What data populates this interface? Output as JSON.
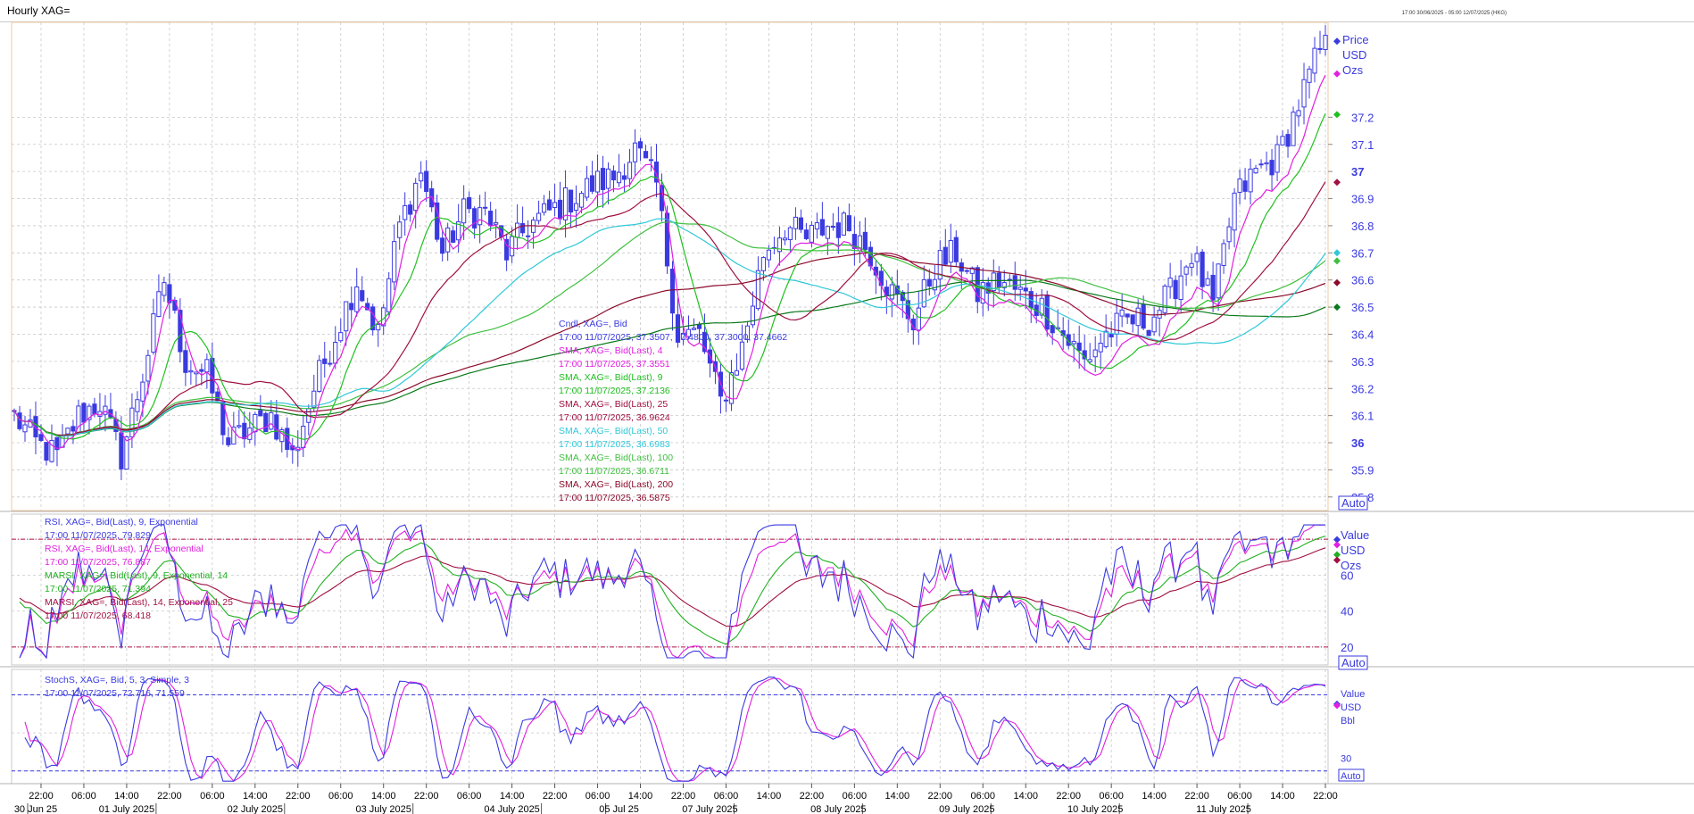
{
  "window": {
    "title": "Hourly XAG=",
    "range_text": "17:00 30/06/2025 - 05:00 12/07/2025 (HKG)"
  },
  "colors": {
    "candle": "#3a3ae0",
    "sma4": "#e020e0",
    "sma9": "#20c020",
    "sma25": "#a01040",
    "sma50": "#30c8d8",
    "sma100": "#40c040",
    "sma200": "#8b0a2a",
    "sma250": "#0a7a1a",
    "rsi9": "#3a3ae0",
    "rsi14": "#e020e0",
    "marsi9": "#20b020",
    "marsi14": "#a01040",
    "stoch_k": "#3a3ae0",
    "stoch_d": "#e020e0",
    "text_default": "#3a3ae0"
  },
  "chart_data": [
    {
      "type": "candlestick",
      "panel": "price",
      "unit_labels": [
        "Price",
        "USD",
        "Ozs"
      ],
      "auto_label": "Auto",
      "ylim": [
        35.75,
        37.55
      ],
      "y_ticks": [
        {
          "value": 37.2,
          "label": "37.2"
        },
        {
          "value": 37.1,
          "label": "37.1"
        },
        {
          "value": 37.0,
          "label": "37"
        },
        {
          "value": 36.9,
          "label": "36.9"
        },
        {
          "value": 36.8,
          "label": "36.8"
        },
        {
          "value": 36.7,
          "label": "36.7"
        },
        {
          "value": 36.6,
          "label": "36.6"
        },
        {
          "value": 36.5,
          "label": "36.5"
        },
        {
          "value": 36.4,
          "label": "36.4"
        },
        {
          "value": 36.3,
          "label": "36.3"
        },
        {
          "value": 36.2,
          "label": "36.2"
        },
        {
          "value": 36.1,
          "label": "36.1"
        },
        {
          "value": 36.0,
          "label": "36"
        },
        {
          "value": 35.9,
          "label": "35.9"
        },
        {
          "value": 35.8,
          "label": "35.8"
        }
      ],
      "legend": [
        {
          "name": "Cndl, XAG=, Bid",
          "value": "17:00 11/07/2025, 37.3507, 37.4800, 37.3000, 37.4662",
          "color": "candle"
        },
        {
          "name": "SMA, XAG=, Bid(Last),  4",
          "value": "17:00 11/07/2025, 37.3551",
          "color": "sma4"
        },
        {
          "name": "SMA, XAG=, Bid(Last),  9",
          "value": "17:00 11/07/2025, 37.2136",
          "color": "sma9"
        },
        {
          "name": "SMA, XAG=, Bid(Last),  25",
          "value": "17:00 11/07/2025, 36.9624",
          "color": "sma25"
        },
        {
          "name": "SMA, XAG=, Bid(Last),  50",
          "value": "17:00 11/07/2025, 36.6983",
          "color": "sma50"
        },
        {
          "name": "SMA, XAG=, Bid(Last),  100",
          "value": "17:00 11/07/2025, 36.6711",
          "color": "sma100"
        },
        {
          "name": "SMA, XAG=, Bid(Last),  200",
          "value": "17:00 11/07/2025, 36.5875",
          "color": "sma200"
        }
      ],
      "close_anchors": [
        [
          0,
          36.1
        ],
        [
          4,
          36.0
        ],
        [
          8,
          35.95
        ],
        [
          12,
          36.1
        ],
        [
          16,
          36.15
        ],
        [
          20,
          35.95
        ],
        [
          24,
          36.25
        ],
        [
          28,
          36.6
        ],
        [
          32,
          36.3
        ],
        [
          36,
          36.25
        ],
        [
          40,
          36.0
        ],
        [
          44,
          36.05
        ],
        [
          48,
          36.1
        ],
        [
          52,
          35.95
        ],
        [
          56,
          36.2
        ],
        [
          60,
          36.4
        ],
        [
          64,
          36.6
        ],
        [
          68,
          36.4
        ],
        [
          72,
          36.8
        ],
        [
          76,
          37.0
        ],
        [
          80,
          36.7
        ],
        [
          84,
          36.85
        ],
        [
          88,
          36.85
        ],
        [
          92,
          36.7
        ],
        [
          96,
          36.8
        ],
        [
          100,
          36.85
        ],
        [
          104,
          36.9
        ],
        [
          108,
          36.95
        ],
        [
          112,
          36.98
        ],
        [
          116,
          37.08
        ],
        [
          120,
          36.95
        ],
        [
          124,
          36.4
        ],
        [
          128,
          36.4
        ],
        [
          132,
          36.15
        ],
        [
          136,
          36.35
        ],
        [
          140,
          36.7
        ],
        [
          144,
          36.8
        ],
        [
          148,
          36.75
        ],
        [
          152,
          36.8
        ],
        [
          156,
          36.8
        ],
        [
          160,
          36.7
        ],
        [
          164,
          36.55
        ],
        [
          168,
          36.45
        ],
        [
          172,
          36.65
        ],
        [
          176,
          36.7
        ],
        [
          180,
          36.55
        ],
        [
          184,
          36.6
        ],
        [
          188,
          36.55
        ],
        [
          192,
          36.5
        ],
        [
          196,
          36.4
        ],
        [
          200,
          36.3
        ],
        [
          204,
          36.4
        ],
        [
          208,
          36.45
        ],
        [
          212,
          36.45
        ],
        [
          216,
          36.55
        ],
        [
          220,
          36.7
        ],
        [
          224,
          36.5
        ],
        [
          228,
          36.9
        ],
        [
          232,
          37.0
        ],
        [
          236,
          37.05
        ],
        [
          240,
          37.25
        ],
        [
          244,
          37.45
        ]
      ],
      "sma_last": {
        "sma4": 37.3551,
        "sma9": 37.2136,
        "sma25": 36.9624,
        "sma50": 36.6983,
        "sma100": 36.6711,
        "sma200": 36.5875,
        "sma250": 36.5
      }
    },
    {
      "type": "line",
      "panel": "rsi",
      "unit_labels": [
        "Value",
        "USD",
        "Ozs"
      ],
      "auto_label": "Auto",
      "ylim": [
        10,
        94
      ],
      "y_ticks": [
        {
          "value": 60,
          "label": "60"
        },
        {
          "value": 40,
          "label": "40"
        },
        {
          "value": 20,
          "label": "20"
        }
      ],
      "reference_lines": [
        80,
        20
      ],
      "legend": [
        {
          "name": "RSI, XAG=, Bid(Last),  9, Exponential",
          "value": "17:00 11/07/2025, 79.829",
          "color": "rsi9"
        },
        {
          "name": "RSI, XAG=, Bid(Last),  14, Exponential",
          "value": "17:00 11/07/2025, 76.887",
          "color": "rsi14"
        },
        {
          "name": "MARSI, XAG=, Bid(Last),  9, Exponential, 14",
          "value": "17:00 11/07/2025, 71.394",
          "color": "marsi9"
        },
        {
          "name": "MARSI, XAG=, Bid(Last),  14, Exponential, 25",
          "value": "17:00 11/07/2025, 68.418",
          "color": "marsi14"
        }
      ],
      "last": {
        "rsi9": 79.829,
        "rsi14": 76.887,
        "marsi9": 71.394,
        "marsi14": 68.418
      }
    },
    {
      "type": "line",
      "panel": "stochastic",
      "unit_labels": [
        "Value",
        "USD",
        "Bbl"
      ],
      "auto_label": "Auto",
      "ylim": [
        10,
        100
      ],
      "y_ticks": [
        {
          "value": 30,
          "label": "30"
        }
      ],
      "reference_lines": [
        80,
        20
      ],
      "legend": [
        {
          "name": "StochS, XAG=, Bid,  5, 3, Simple, 3",
          "value": "17:00 11/07/2025, 72.716, 71.559",
          "color": "stoch_k"
        }
      ],
      "last": {
        "k": 72.716,
        "d": 71.559
      }
    }
  ],
  "x_axis": {
    "bars": 246,
    "time_ticks": [
      {
        "bar": 5,
        "label": "22:00"
      },
      {
        "bar": 13,
        "label": "06:00"
      },
      {
        "bar": 21,
        "label": "14:00"
      },
      {
        "bar": 29,
        "label": "22:00"
      },
      {
        "bar": 37,
        "label": "06:00"
      },
      {
        "bar": 45,
        "label": "14:00"
      },
      {
        "bar": 53,
        "label": "22:00"
      },
      {
        "bar": 61,
        "label": "06:00"
      },
      {
        "bar": 69,
        "label": "14:00"
      },
      {
        "bar": 77,
        "label": "22:00"
      },
      {
        "bar": 85,
        "label": "06:00"
      },
      {
        "bar": 93,
        "label": "14:00"
      },
      {
        "bar": 101,
        "label": "22:00"
      },
      {
        "bar": 109,
        "label": "06:00"
      },
      {
        "bar": 117,
        "label": "14:00"
      },
      {
        "bar": 125,
        "label": "22:00"
      },
      {
        "bar": 133,
        "label": "06:00"
      },
      {
        "bar": 141,
        "label": "14:00"
      },
      {
        "bar": 149,
        "label": "22:00"
      },
      {
        "bar": 157,
        "label": "06:00"
      },
      {
        "bar": 165,
        "label": "14:00"
      },
      {
        "bar": 173,
        "label": "22:00"
      },
      {
        "bar": 181,
        "label": "06:00"
      },
      {
        "bar": 189,
        "label": "14:00"
      },
      {
        "bar": 197,
        "label": "22:00"
      },
      {
        "bar": 205,
        "label": "06:00"
      },
      {
        "bar": 213,
        "label": "14:00"
      },
      {
        "bar": 221,
        "label": "22:00"
      },
      {
        "bar": 229,
        "label": "06:00"
      },
      {
        "bar": 237,
        "label": "14:00"
      },
      {
        "bar": 245,
        "label": "22:00"
      }
    ],
    "date_labels": [
      {
        "bar": 4,
        "label": "30 Jun 25"
      },
      {
        "bar": 21,
        "label": "01 July 2025"
      },
      {
        "bar": 45,
        "label": "02 July 2025"
      },
      {
        "bar": 69,
        "label": "03 July 2025"
      },
      {
        "bar": 93,
        "label": "04 July 2025"
      },
      {
        "bar": 113,
        "label": "05 Jul 25"
      },
      {
        "bar": 130,
        "label": "07 July 2025"
      },
      {
        "bar": 154,
        "label": "08 July 2025"
      },
      {
        "bar": 178,
        "label": "09 July 2025"
      },
      {
        "bar": 202,
        "label": "10 July 2025"
      },
      {
        "bar": 226,
        "label": "11 July 2025"
      }
    ]
  }
}
